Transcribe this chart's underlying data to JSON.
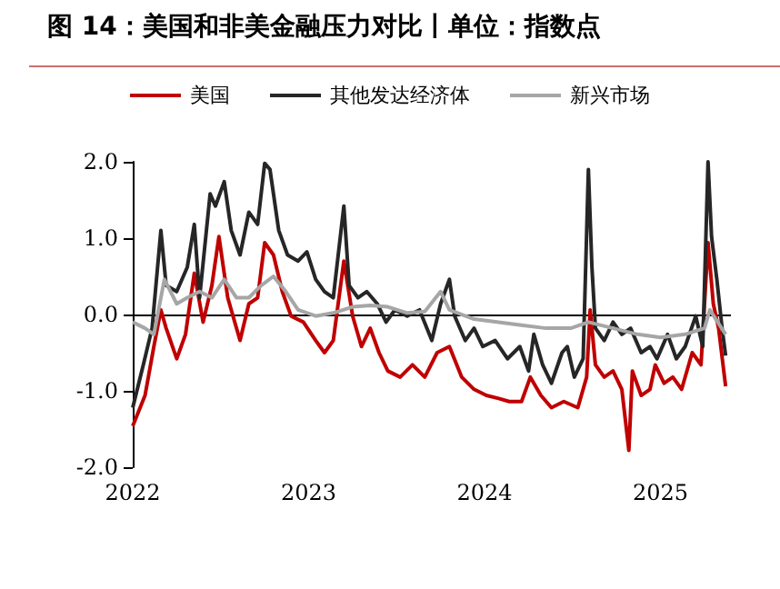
{
  "chart_data": {
    "type": "line",
    "title": "图 14：美国和非美金融压力对比丨单位：指数点",
    "xlim": [
      2022,
      2025.4
    ],
    "xticks": [
      2022,
      2023,
      2024,
      2025
    ],
    "ylim": [
      -2,
      2
    ],
    "yticks": [
      {
        "value": -2,
        "label": "-2.0"
      },
      {
        "value": -1,
        "label": "-1.0"
      },
      {
        "value": 0,
        "label": "0.0"
      },
      {
        "value": 1,
        "label": "1.0"
      },
      {
        "value": 2,
        "label": "2.0"
      }
    ],
    "grid": false,
    "legend": "top",
    "marker": "none",
    "line_style": "solid",
    "ref_lines": [
      {
        "axis": "y",
        "value": 0,
        "color": "#000000"
      }
    ],
    "series": [
      {
        "name": "美国",
        "color": "#c00000",
        "x": [
          2022.0,
          2022.07,
          2022.12,
          2022.16,
          2022.19,
          2022.25,
          2022.3,
          2022.35,
          2022.4,
          2022.45,
          2022.49,
          2022.54,
          2022.61,
          2022.66,
          2022.71,
          2022.75,
          2022.8,
          2022.85,
          2022.9,
          2022.97,
          2023.04,
          2023.09,
          2023.14,
          2023.2,
          2023.25,
          2023.3,
          2023.35,
          2023.4,
          2023.45,
          2023.52,
          2023.59,
          2023.66,
          2023.73,
          2023.8,
          2023.87,
          2023.94,
          2024.01,
          2024.08,
          2024.14,
          2024.21,
          2024.26,
          2024.32,
          2024.38,
          2024.45,
          2024.53,
          2024.58,
          2024.6,
          2024.63,
          2024.68,
          2024.73,
          2024.78,
          2024.82,
          2024.84,
          2024.89,
          2024.94,
          2024.97,
          2025.02,
          2025.07,
          2025.12,
          2025.18,
          2025.23,
          2025.27,
          2025.3,
          2025.33,
          2025.37
        ],
        "values": [
          -1.46,
          -1.06,
          -0.42,
          0.06,
          -0.18,
          -0.58,
          -0.26,
          0.54,
          -0.1,
          0.38,
          1.02,
          0.22,
          -0.34,
          0.14,
          0.22,
          0.94,
          0.78,
          0.3,
          -0.02,
          -0.1,
          -0.34,
          -0.5,
          -0.34,
          0.7,
          -0.02,
          -0.42,
          -0.18,
          -0.5,
          -0.74,
          -0.82,
          -0.66,
          -0.82,
          -0.5,
          -0.42,
          -0.82,
          -0.98,
          -1.06,
          -1.1,
          -1.14,
          -1.14,
          -0.82,
          -1.06,
          -1.22,
          -1.14,
          -1.22,
          -0.82,
          0.06,
          -0.66,
          -0.82,
          -0.74,
          -0.98,
          -1.78,
          -0.74,
          -1.06,
          -0.98,
          -0.66,
          -0.9,
          -0.82,
          -0.98,
          -0.5,
          -0.66,
          0.94,
          0.14,
          -0.18,
          -0.94
        ]
      },
      {
        "name": "其他发达经济体",
        "color": "#262626",
        "x": [
          2022.0,
          2022.06,
          2022.11,
          2022.16,
          2022.19,
          2022.25,
          2022.31,
          2022.35,
          2022.38,
          2022.44,
          2022.47,
          2022.52,
          2022.56,
          2022.61,
          2022.66,
          2022.71,
          2022.75,
          2022.78,
          2022.83,
          2022.88,
          2022.94,
          2022.99,
          2023.04,
          2023.09,
          2023.14,
          2023.2,
          2023.23,
          2023.28,
          2023.33,
          2023.39,
          2023.44,
          2023.49,
          2023.56,
          2023.63,
          2023.7,
          2023.75,
          2023.8,
          2023.83,
          2023.89,
          2023.94,
          2023.99,
          2024.06,
          2024.13,
          2024.2,
          2024.25,
          2024.28,
          2024.33,
          2024.38,
          2024.44,
          2024.47,
          2024.51,
          2024.56,
          2024.59,
          2024.61,
          2024.63,
          2024.68,
          2024.73,
          2024.78,
          2024.83,
          2024.89,
          2024.94,
          2024.98,
          2025.04,
          2025.09,
          2025.14,
          2025.2,
          2025.24,
          2025.27,
          2025.29,
          2025.32,
          2025.35,
          2025.37
        ],
        "values": [
          -1.22,
          -0.66,
          -0.18,
          1.1,
          0.38,
          0.3,
          0.62,
          1.18,
          0.22,
          1.58,
          1.42,
          1.74,
          1.1,
          0.78,
          1.34,
          1.18,
          1.98,
          1.9,
          1.1,
          0.78,
          0.7,
          0.82,
          0.46,
          0.3,
          0.22,
          1.42,
          0.38,
          0.22,
          0.3,
          0.14,
          -0.1,
          0.06,
          -0.02,
          0.06,
          -0.34,
          0.14,
          0.46,
          -0.02,
          -0.34,
          -0.18,
          -0.42,
          -0.34,
          -0.58,
          -0.42,
          -0.74,
          -0.26,
          -0.66,
          -0.9,
          -0.5,
          -0.42,
          -0.82,
          -0.58,
          1.9,
          0.62,
          -0.18,
          -0.34,
          -0.1,
          -0.26,
          -0.18,
          -0.5,
          -0.42,
          -0.58,
          -0.26,
          -0.58,
          -0.42,
          -0.02,
          -0.42,
          2.0,
          1.02,
          0.46,
          -0.18,
          -0.54
        ]
      },
      {
        "name": "新兴市场",
        "color": "#a6a6a6",
        "x": [
          2022.0,
          2022.07,
          2022.12,
          2022.18,
          2022.25,
          2022.31,
          2022.38,
          2022.45,
          2022.52,
          2022.59,
          2022.66,
          2022.73,
          2022.8,
          2022.87,
          2022.94,
          2023.04,
          2023.14,
          2023.25,
          2023.35,
          2023.45,
          2023.56,
          2023.66,
          2023.75,
          2023.8,
          2023.94,
          2024.08,
          2024.21,
          2024.35,
          2024.49,
          2024.59,
          2024.73,
          2024.87,
          2025.0,
          2025.14,
          2025.25,
          2025.28,
          2025.37
        ],
        "values": [
          -0.1,
          -0.18,
          -0.26,
          0.46,
          0.14,
          0.22,
          0.3,
          0.22,
          0.46,
          0.22,
          0.22,
          0.38,
          0.5,
          0.3,
          0.06,
          -0.02,
          0.02,
          0.1,
          0.12,
          0.1,
          0.02,
          0.04,
          0.3,
          0.06,
          -0.06,
          -0.1,
          -0.14,
          -0.18,
          -0.18,
          -0.1,
          -0.18,
          -0.26,
          -0.3,
          -0.26,
          -0.18,
          0.06,
          -0.26
        ]
      }
    ]
  }
}
